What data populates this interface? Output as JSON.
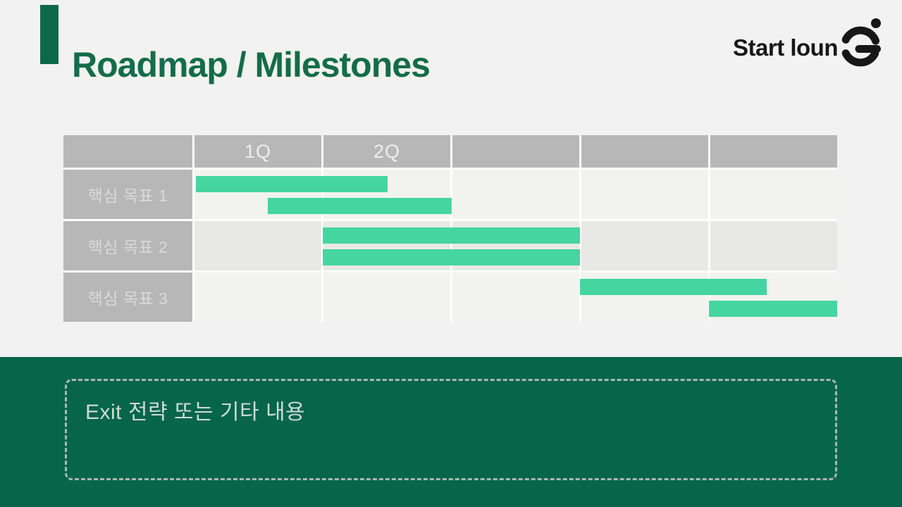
{
  "header": {
    "title": "Roadmap / Milestones"
  },
  "logo": {
    "text": "Start loun",
    "g_icon": "stylized-g-with-dot"
  },
  "chart_data": {
    "type": "bar",
    "subtype": "gantt",
    "title": "Roadmap / Milestones",
    "x_ticks": [
      "",
      "1Q",
      "2Q",
      "",
      "",
      ""
    ],
    "x_unit": "quarter-columns",
    "x_range": [
      0,
      5
    ],
    "grid": true,
    "bar_color": "#45d5a1",
    "rows": [
      {
        "label": "핵심 목표 1",
        "bars": [
          {
            "start": 0.01,
            "end": 1.5,
            "line": 1
          },
          {
            "start": 0.57,
            "end": 2.0,
            "line": 2
          }
        ]
      },
      {
        "label": "핵심 목표 2",
        "bars": [
          {
            "start": 1.0,
            "end": 3.0,
            "line": 1
          },
          {
            "start": 1.0,
            "end": 3.0,
            "line": 2
          }
        ]
      },
      {
        "label": "핵심 목표 3",
        "bars": [
          {
            "start": 3.0,
            "end": 4.45,
            "line": 1
          },
          {
            "start": 4.0,
            "end": 5.0,
            "line": 2
          }
        ]
      }
    ]
  },
  "footer": {
    "note": "Exit 전략 또는 기타 내용"
  },
  "colors": {
    "page_bg": "#f1f2f1",
    "title_green": "#146c4b",
    "accent_bar_green": "#0c6a4a",
    "band_green": "#07654a",
    "table_gray": "#b7b7b7",
    "row_light": "#f2f2f1",
    "row_dark": "#e8e8e7",
    "bar_green": "#45d5a1",
    "dash_border": "#aab8b1",
    "logo_black": "#171717"
  }
}
